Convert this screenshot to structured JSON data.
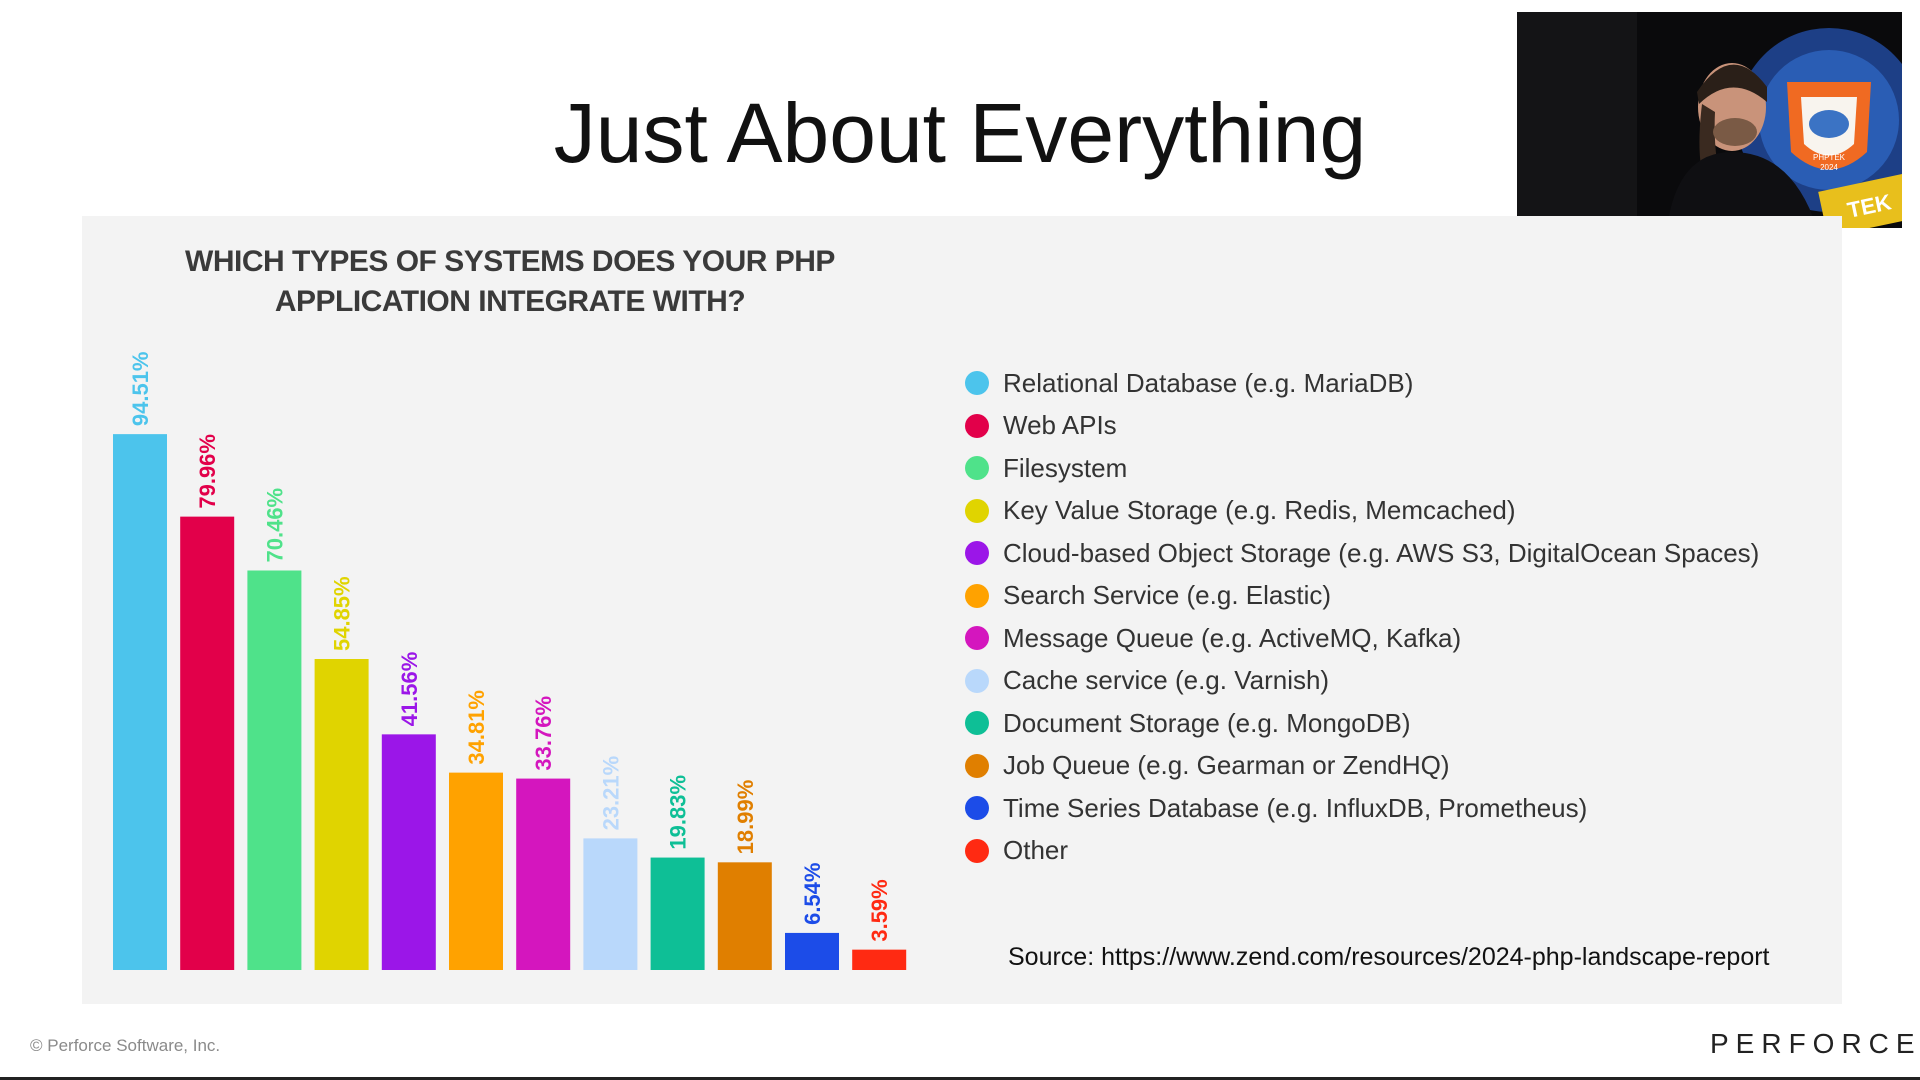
{
  "slide": {
    "title": "Just About Everything",
    "source": "Source: https://www.zend.com/resources/2024-php-landscape-report",
    "copyright": "© Perforce Software, Inc.",
    "brand": "PERFORCE"
  },
  "video": {
    "badge_text": "PHPTEK",
    "badge_year": "2024",
    "corner_text": "TEK"
  },
  "chart_data": {
    "type": "bar",
    "title": "WHICH TYPES OF SYSTEMS DOES YOUR PHP APPLICATION INTEGRATE WITH?",
    "ylim": [
      0,
      100
    ],
    "grid": false,
    "legend_position": "right",
    "categories": [
      "Relational Database (e.g. MariaDB)",
      "Web APIs",
      "Filesystem",
      "Key Value Storage (e.g. Redis, Memcached)",
      "Cloud-based Object Storage (e.g. AWS  S3, DigitalOcean Spaces)",
      "Search Service (e.g. Elastic)",
      "Message Queue (e.g. ActiveMQ, Kafka)",
      "Cache service (e.g. Varnish)",
      "Document Storage (e.g. MongoDB)",
      "Job Queue (e.g. Gearman or ZendHQ)",
      "Time Series Database (e.g. InfluxDB, Prometheus)",
      "Other"
    ],
    "values": [
      94.51,
      79.96,
      70.46,
      54.85,
      41.56,
      34.81,
      33.76,
      23.21,
      19.83,
      18.99,
      6.54,
      3.59
    ],
    "value_labels": [
      "94.51%",
      "79.96%",
      "70.46%",
      "54.85%",
      "41.56%",
      "34.81%",
      "33.76%",
      "23.21%",
      "19.83%",
      "18.99%",
      "6.54%",
      "3.59%"
    ],
    "colors": [
      "#4cc4ec",
      "#e2004a",
      "#4fe28a",
      "#e0d400",
      "#9b16e8",
      "#ffa200",
      "#d416be",
      "#b9d8fb",
      "#0ebf96",
      "#e07f00",
      "#1c4ce8",
      "#ff2a12"
    ]
  }
}
